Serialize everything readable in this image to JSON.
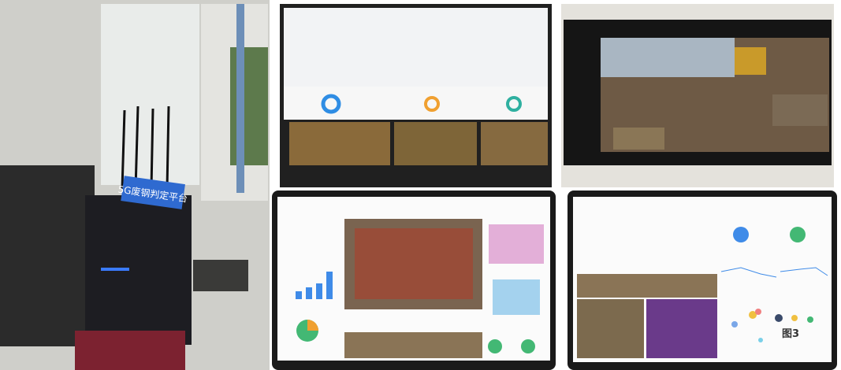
{
  "photo_sign": "5G废钢判定平台",
  "figure_label": "图3"
}
